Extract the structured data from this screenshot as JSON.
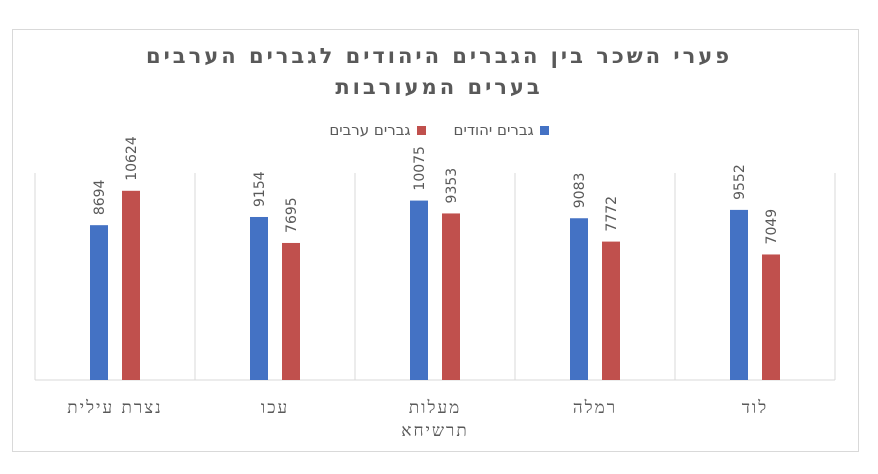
{
  "chart_data": {
    "type": "bar",
    "title_lines": [
      "פערי השכר בין הגברים היהודים לגברים הערבים",
      "בערים המעורבות"
    ],
    "categories": [
      [
        "נצרת",
        "עילית"
      ],
      [
        "עכו"
      ],
      [
        "מעלות",
        "תרשיחא"
      ],
      [
        "רמלה"
      ],
      [
        "לוד"
      ]
    ],
    "series": [
      {
        "name": "גברים יהודים",
        "color": "#4472c4",
        "values": [
          8694,
          9154,
          10075,
          9083,
          9552
        ]
      },
      {
        "name": "גברים ערבים",
        "color": "#c0504d",
        "values": [
          10624,
          7695,
          9353,
          7772,
          7049
        ]
      }
    ],
    "xlabel": "",
    "ylabel": "",
    "ylim": [
      0,
      12000
    ],
    "grid": false,
    "legend_position": "top"
  }
}
